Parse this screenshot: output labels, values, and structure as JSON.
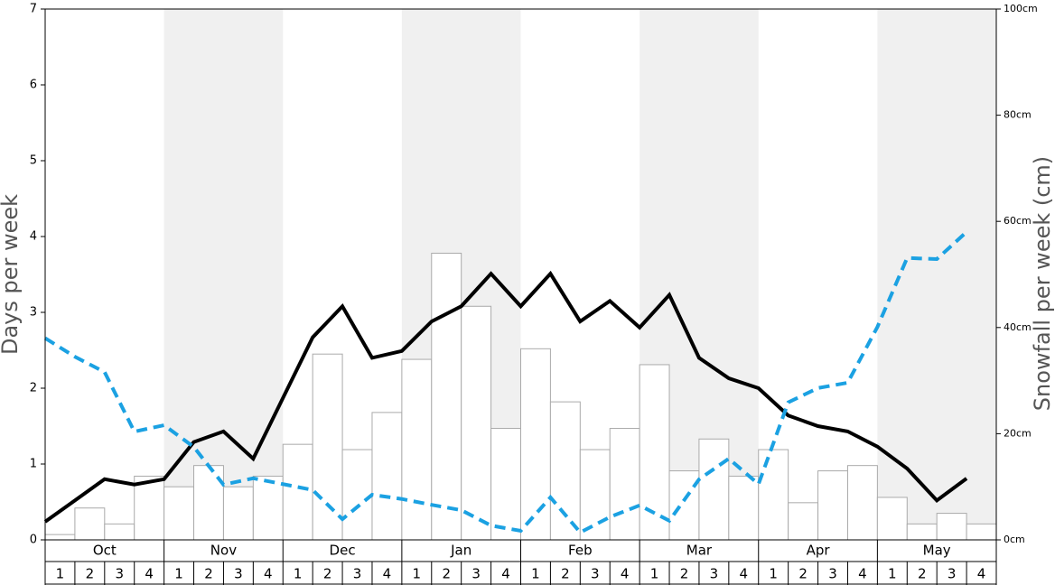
{
  "chart_data": {
    "type": "bar-line",
    "y_label": "Days per week",
    "y2_label": "Snowfall per week (cm)",
    "months": [
      "Oct",
      "Nov",
      "Dec",
      "Jan",
      "Feb",
      "Mar",
      "Apr",
      "May"
    ],
    "categories": [
      "1",
      "2",
      "3",
      "4",
      "1",
      "2",
      "3",
      "4",
      "1",
      "2",
      "3",
      "4",
      "1",
      "2",
      "3",
      "4",
      "1",
      "2",
      "3",
      "4",
      "1",
      "2",
      "3",
      "4",
      "1",
      "2",
      "3",
      "4",
      "1",
      "2",
      "3",
      "4"
    ],
    "ylim": [
      0,
      7
    ],
    "yticks": [
      0,
      1,
      2,
      3,
      4,
      5,
      6,
      7
    ],
    "y2lim": [
      0,
      100
    ],
    "y2ticks": [
      {
        "value": 0,
        "label": "0cm"
      },
      {
        "value": 20,
        "label": "20cm"
      },
      {
        "value": 40,
        "label": "40cm"
      },
      {
        "value": 60,
        "label": "60cm"
      },
      {
        "value": 80,
        "label": "80cm"
      },
      {
        "value": 100,
        "label": "100cm"
      }
    ],
    "series": [
      {
        "type": "bar",
        "axis": "y2",
        "color": "#ffffff",
        "values": [
          1,
          6,
          3,
          12,
          10,
          14,
          10,
          12,
          18,
          35,
          17,
          24,
          34,
          54,
          44,
          21,
          36,
          26,
          17,
          21,
          33,
          13,
          19,
          12,
          17,
          7,
          13,
          14,
          8,
          3,
          5,
          3
        ]
      },
      {
        "type": "line",
        "color": "#000000",
        "values": [
          0.24,
          0.52,
          0.8,
          0.73,
          0.8,
          1.29,
          1.43,
          1.07,
          1.87,
          2.67,
          3.08,
          2.4,
          2.49,
          2.88,
          3.08,
          3.51,
          3.08,
          3.51,
          2.88,
          3.15,
          2.8,
          3.23,
          2.4,
          2.13,
          2.0,
          1.64,
          1.5,
          1.43,
          1.23,
          0.94,
          0.52,
          0.81
        ]
      },
      {
        "type": "dashed-line",
        "axis": "y2",
        "color": "#1ba1e2",
        "values": [
          38,
          34.5,
          31.6,
          20.4,
          21.6,
          17.5,
          10.4,
          11.6,
          10.5,
          9.4,
          3.9,
          8.5,
          7.7,
          6.6,
          5.6,
          2.7,
          1.7,
          8.0,
          1.4,
          4.3,
          6.5,
          3.6,
          11.4,
          15.3,
          10.5,
          25.9,
          28.6,
          29.6,
          40.1,
          53.1,
          52.9,
          58
        ]
      }
    ]
  }
}
